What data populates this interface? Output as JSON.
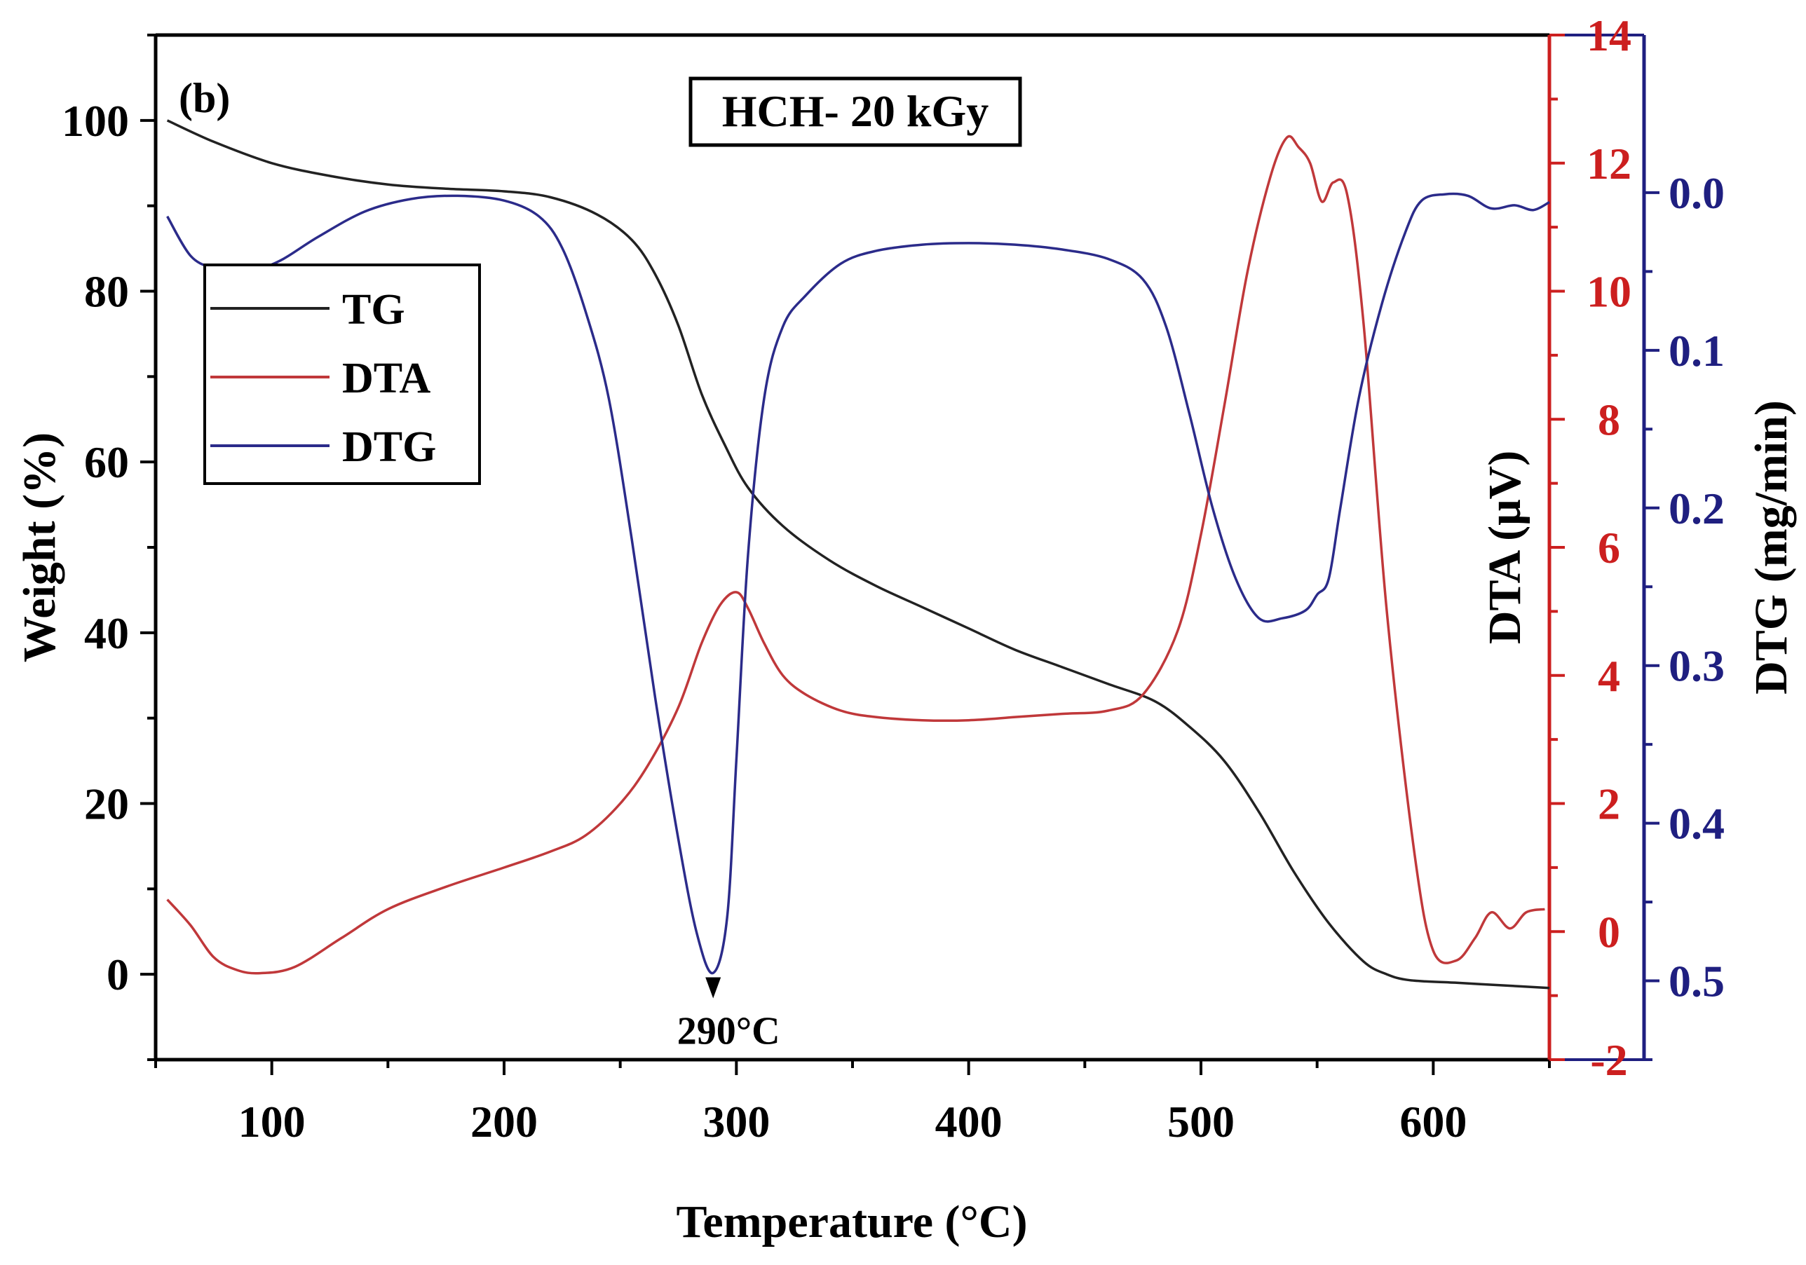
{
  "chart_data": {
    "type": "line",
    "panel_label": "(b)",
    "title": "HCH- 20 kGy",
    "xlabel": "Temperature (°C)",
    "ylabel_left": "Weight (%)",
    "ylabel_right1": "DTA (μV)",
    "ylabel_right2": "DTG (mg/min)",
    "xlim": [
      50,
      650
    ],
    "ylim_left": [
      -10,
      110
    ],
    "ylim_right1": [
      -2,
      14
    ],
    "ylim_right2": [
      0.55,
      -0.1
    ],
    "x_ticks": [
      100,
      200,
      300,
      400,
      500,
      600
    ],
    "x_tick_labels": [
      "100",
      "200",
      "300",
      "400",
      "500",
      "600"
    ],
    "yleft_ticks": [
      0,
      20,
      40,
      60,
      80,
      100
    ],
    "yleft_tick_labels": [
      "0",
      "20",
      "40",
      "60",
      "80",
      "100"
    ],
    "yright1_ticks": [
      -2,
      0,
      2,
      4,
      6,
      8,
      10,
      12,
      14
    ],
    "yright1_tick_labels": [
      "-2",
      "0",
      "2",
      "4",
      "6",
      "8",
      "10",
      "12",
      "14"
    ],
    "yright2_ticks": [
      0.0,
      0.1,
      0.2,
      0.3,
      0.4,
      0.5
    ],
    "yright2_tick_labels": [
      "0.0",
      "0.1",
      "0.2",
      "0.3",
      "0.4",
      "0.5"
    ],
    "annotation": {
      "text": "290°C",
      "x": 290
    },
    "colors": {
      "axis_left": "#000000",
      "axis_right1": "#cc1f1f",
      "axis_right2": "#1f1f80"
    },
    "series": [
      {
        "name": "TG",
        "axis": "left",
        "color": "#222222",
        "x": [
          55,
          75,
          100,
          125,
          150,
          175,
          200,
          220,
          240,
          255,
          265,
          275,
          285,
          295,
          305,
          320,
          340,
          360,
          380,
          400,
          420,
          440,
          460,
          480,
          495,
          510,
          525,
          540,
          555,
          570,
          580,
          590,
          610,
          630,
          650
        ],
        "y": [
          100,
          97.5,
          95,
          93.5,
          92.5,
          92,
          91.7,
          91,
          89,
          86,
          82,
          76,
          68,
          62,
          57,
          52.5,
          48.5,
          45.5,
          43,
          40.5,
          38,
          36,
          34,
          32,
          29,
          25,
          19,
          12,
          6,
          1.5,
          0,
          -0.7,
          -1,
          -1.3,
          -1.6
        ]
      },
      {
        "name": "DTA",
        "axis": "right1",
        "color": "#c0383a",
        "x": [
          55,
          65,
          75,
          85,
          95,
          110,
          130,
          150,
          175,
          200,
          220,
          235,
          250,
          262,
          275,
          285,
          293,
          300,
          305,
          312,
          320,
          330,
          345,
          360,
          380,
          400,
          420,
          440,
          460,
          475,
          490,
          500,
          510,
          520,
          530,
          537,
          542,
          547,
          552,
          557,
          563,
          570,
          580,
          592,
          600,
          610,
          618,
          625,
          633,
          640,
          648
        ],
        "y": [
          0.5,
          0.1,
          -0.4,
          -0.6,
          -0.65,
          -0.55,
          -0.1,
          0.35,
          0.7,
          1.0,
          1.25,
          1.5,
          2.0,
          2.6,
          3.5,
          4.5,
          5.1,
          5.3,
          5.05,
          4.5,
          4.0,
          3.7,
          3.45,
          3.35,
          3.3,
          3.3,
          3.35,
          3.4,
          3.45,
          3.7,
          4.7,
          6.2,
          8.2,
          10.3,
          11.8,
          12.4,
          12.25,
          12.0,
          11.4,
          11.7,
          11.5,
          9.5,
          5.0,
          1.2,
          -0.3,
          -0.45,
          -0.1,
          0.3,
          0.05,
          0.3,
          0.35
        ]
      },
      {
        "name": "DTG",
        "axis": "right2",
        "color": "#2b2b8a",
        "x": [
          55,
          65,
          75,
          85,
          95,
          105,
          120,
          140,
          160,
          180,
          200,
          215,
          225,
          235,
          245,
          255,
          265,
          275,
          283,
          290,
          296,
          300,
          305,
          312,
          320,
          330,
          345,
          360,
          380,
          400,
          420,
          440,
          460,
          475,
          485,
          495,
          505,
          515,
          525,
          535,
          545,
          550,
          555,
          560,
          568,
          578,
          588,
          595,
          605,
          615,
          625,
          635,
          643,
          650
        ],
        "y": [
          0.015,
          0.04,
          0.048,
          0.05,
          0.048,
          0.042,
          0.028,
          0.012,
          0.004,
          0.002,
          0.005,
          0.015,
          0.035,
          0.075,
          0.13,
          0.22,
          0.32,
          0.41,
          0.47,
          0.495,
          0.46,
          0.36,
          0.23,
          0.13,
          0.085,
          0.065,
          0.045,
          0.037,
          0.033,
          0.032,
          0.033,
          0.036,
          0.042,
          0.055,
          0.085,
          0.14,
          0.2,
          0.245,
          0.27,
          0.27,
          0.265,
          0.255,
          0.245,
          0.2,
          0.13,
          0.07,
          0.025,
          0.005,
          0.001,
          0.002,
          0.01,
          0.008,
          0.011,
          0.006
        ]
      }
    ]
  }
}
